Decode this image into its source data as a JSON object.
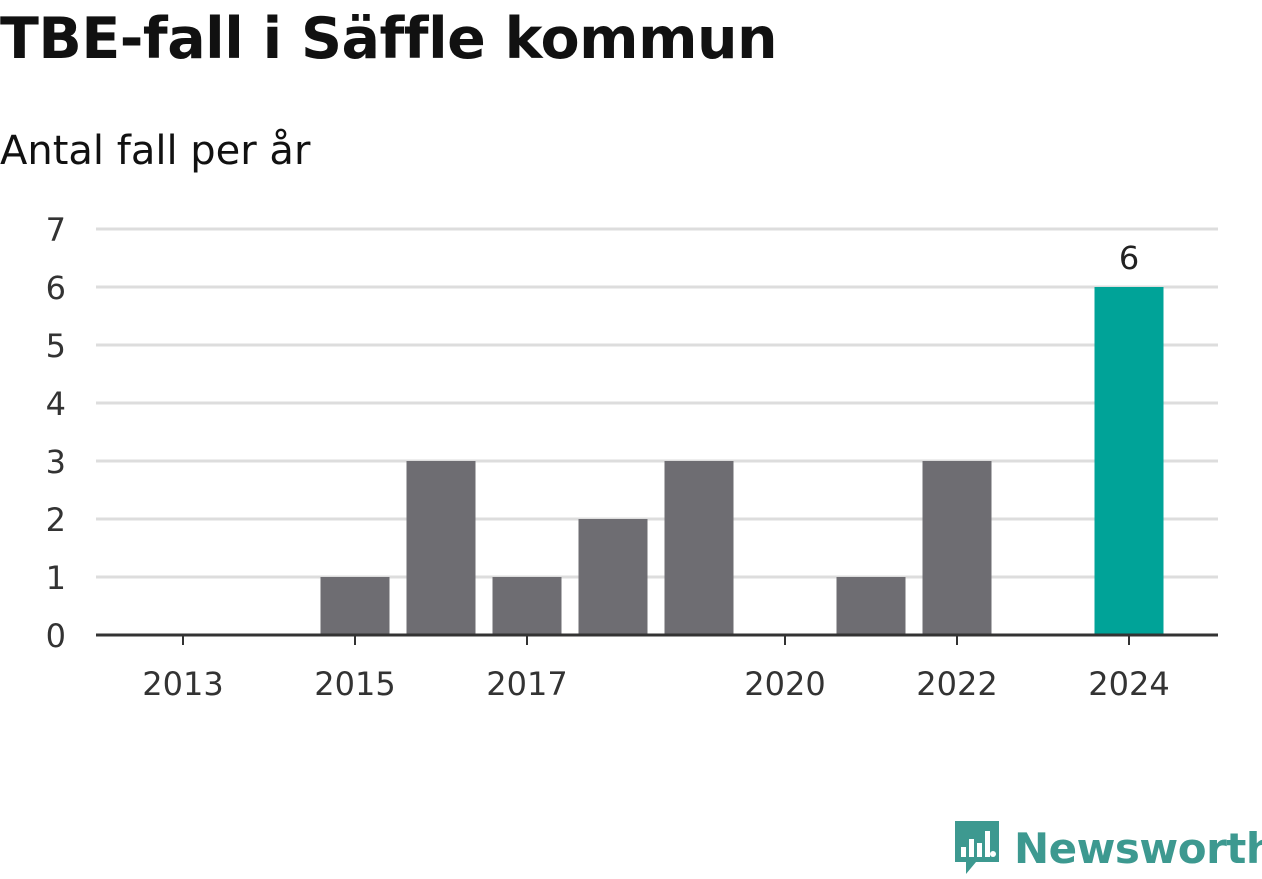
{
  "title": "TBE-fall i Säffle kommun",
  "subtitle": "Antal fall per år",
  "brand": {
    "name": "Newsworthy",
    "logo_icon": "newsworthy-chart-bubble-icon",
    "color": "#3d9990"
  },
  "colors": {
    "bar": "#6e6d72",
    "highlight": "#00a398",
    "grid": "#dddddd",
    "axis": "#333333"
  },
  "chart_data": {
    "type": "bar",
    "title": "TBE-fall i Säffle kommun",
    "subtitle": "Antal fall per år",
    "xlabel": "",
    "ylabel": "",
    "categories": [
      "2013",
      "2014",
      "2015",
      "2016",
      "2017",
      "2018",
      "2019",
      "2020",
      "2021",
      "2022",
      "2023",
      "2024"
    ],
    "values": [
      0,
      0,
      1,
      3,
      1,
      2,
      3,
      0,
      1,
      3,
      0,
      6
    ],
    "x_tick_labels": [
      "2013",
      "2015",
      "2017",
      "2020",
      "2022",
      "2024"
    ],
    "highlight_category": "2024",
    "data_labels": [
      {
        "category": "2024",
        "text": "6"
      }
    ],
    "ylim": [
      0,
      7
    ],
    "yticks": [
      0,
      1,
      2,
      3,
      4,
      5,
      6,
      7
    ],
    "grid": true,
    "legend": "none"
  }
}
